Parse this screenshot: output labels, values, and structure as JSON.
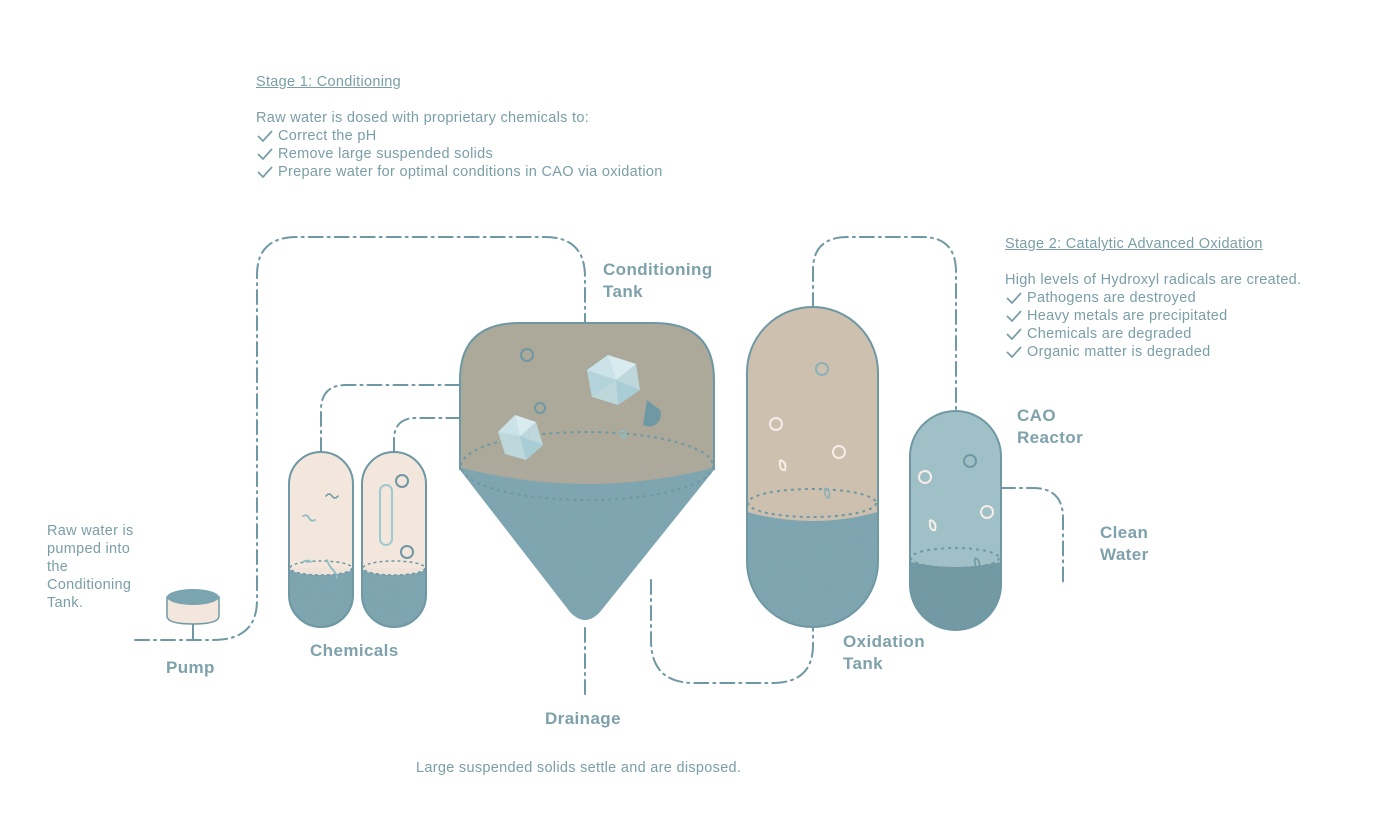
{
  "stage1": {
    "title": "Stage 1: Conditioning",
    "intro": "Raw water is dosed with proprietary chemicals to:",
    "items": [
      "Correct the pH",
      "Remove large suspended solids",
      "Prepare water for optimal conditions in CAO via oxidation"
    ]
  },
  "stage2": {
    "title": "Stage 2: Catalytic Advanced Oxidation",
    "intro": "High levels of Hydroxyl radicals are created.",
    "items": [
      "Pathogens are destroyed",
      "Heavy metals are precipitated",
      "Chemicals are degraded",
      "Organic matter is degraded"
    ]
  },
  "labels": {
    "conditioning_tank": [
      "Conditioning",
      "Tank"
    ],
    "cao_reactor": [
      "CAO",
      "Reactor"
    ],
    "clean_water": [
      "Clean",
      "Water"
    ],
    "oxidation_tank": [
      "Oxidation",
      "Tank"
    ],
    "chemicals": "Chemicals",
    "pump": "Pump",
    "drainage": "Drainage"
  },
  "notes": {
    "raw_water": [
      "Raw water is",
      "pumped into",
      "the",
      "Conditioning",
      "Tank."
    ],
    "drainage": "Large suspended solids settle and are disposed."
  },
  "colors": {
    "text": "#7a9ea8",
    "pipe": "#6e98a3",
    "water": "#7aa4b0",
    "tank_outline": "#6e98a3",
    "conditioning_fill": "#aca89a",
    "oxidation_fill": "#cdc0af",
    "chemical_fill": "#f3e6dc",
    "cao_fill": "#a0c0c8",
    "crystal": "#bfdbe2"
  }
}
